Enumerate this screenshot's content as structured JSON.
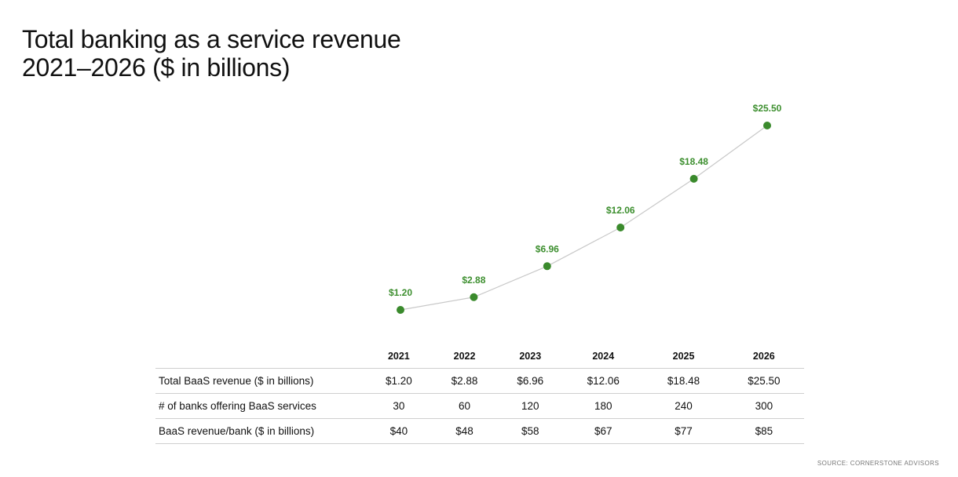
{
  "title": {
    "line1": "Total banking as a service revenue",
    "line2": "2021–2026 ($ in billions)"
  },
  "chart_data": {
    "type": "line",
    "title": "Total banking as a service revenue 2021–2026 ($ in billions)",
    "x": [
      "2021",
      "2022",
      "2023",
      "2024",
      "2025",
      "2026"
    ],
    "series": [
      {
        "values": [
          1.2,
          2.88,
          6.96,
          12.06,
          18.48,
          25.5
        ],
        "labels": [
          "$1.20",
          "$2.88",
          "$6.96",
          "$12.06",
          "$18.48",
          "$25.50"
        ]
      }
    ],
    "grid": false,
    "colors": {
      "marker": "#3a8a2c",
      "line": "#c8c8c8",
      "label": "#3d8f2f"
    }
  },
  "table": {
    "columns": [
      "2021",
      "2022",
      "2023",
      "2024",
      "2025",
      "2026"
    ],
    "rows": [
      {
        "label": "Total BaaS revenue ($ in billions)",
        "values": [
          "$1.20",
          "$2.88",
          "$6.96",
          "$12.06",
          "$18.48",
          "$25.50"
        ]
      },
      {
        "label": "# of banks offering BaaS services",
        "values": [
          "30",
          "60",
          "120",
          "180",
          "240",
          "300"
        ]
      },
      {
        "label": "BaaS revenue/bank ($ in billions)",
        "values": [
          "$40",
          "$48",
          "$58",
          "$67",
          "$77",
          "$85"
        ]
      }
    ]
  },
  "source": "SOURCE: CORNERSTONE ADVISORS"
}
